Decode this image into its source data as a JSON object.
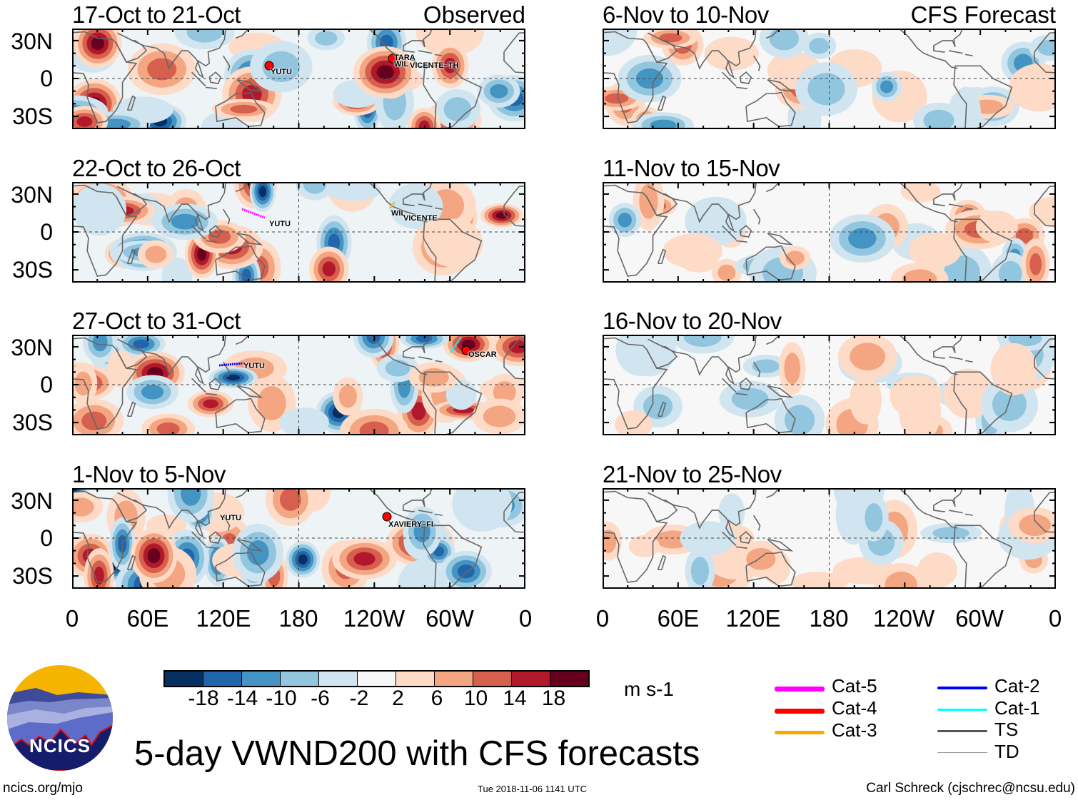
{
  "header": {
    "observed_label": "Observed",
    "forecast_label": "CFS Forecast"
  },
  "lat_labels": [
    "30N",
    "0",
    "30S"
  ],
  "lon_labels": [
    "0",
    "60E",
    "120E",
    "180",
    "120W",
    "60W",
    "0"
  ],
  "panels": [
    {
      "title": "17-Oct to 21-Oct",
      "storms": [
        "YUTU",
        "TARA",
        "WIL",
        "VICENTE–TH"
      ]
    },
    {
      "title": "22-Oct to 26-Oct",
      "storms": [
        "YUTU",
        "WIL",
        "VICENTE"
      ]
    },
    {
      "title": "27-Oct to 31-Oct",
      "storms": [
        "YUTU",
        "OSCAR"
      ]
    },
    {
      "title": "1-Nov to 5-Nov",
      "storms": [
        "YUTU",
        "XAVIERY–FI"
      ]
    },
    {
      "title": "6-Nov to 10-Nov",
      "storms": []
    },
    {
      "title": "11-Nov to 15-Nov",
      "storms": []
    },
    {
      "title": "16-Nov to 20-Nov",
      "storms": []
    },
    {
      "title": "21-Nov to 25-Nov",
      "storms": []
    }
  ],
  "colorbar": {
    "labels": [
      "-18",
      "-14",
      "-10",
      "-6",
      "-2",
      "2",
      "6",
      "10",
      "14",
      "18"
    ],
    "colors": [
      "#053061",
      "#2166ac",
      "#4393c3",
      "#92c5de",
      "#d1e5f0",
      "#f7f7f7",
      "#fddbc7",
      "#f4a582",
      "#d6604d",
      "#b2182b",
      "#67001f"
    ],
    "units": "m s-1"
  },
  "legend": [
    {
      "label": "Cat-5",
      "color": "#ff00ff"
    },
    {
      "label": "Cat-4",
      "color": "#ff0000"
    },
    {
      "label": "Cat-3",
      "color": "#ffa500"
    },
    {
      "label": "Cat-2",
      "color": "#0000ff"
    },
    {
      "label": "Cat-1",
      "color": "#00ffff"
    },
    {
      "label": "TS",
      "color": "#555555"
    },
    {
      "label": "TD",
      "color": "#999999"
    }
  ],
  "footer": {
    "title": "5-day VWND200 with CFS forecasts",
    "logo_text": "NCICS",
    "url": "ncics.org/mjo",
    "timestamp": "Tue 2018-11-06 1141 UTC",
    "credit": "Carl Schreck (cjschrec@ncsu.edu)"
  }
}
